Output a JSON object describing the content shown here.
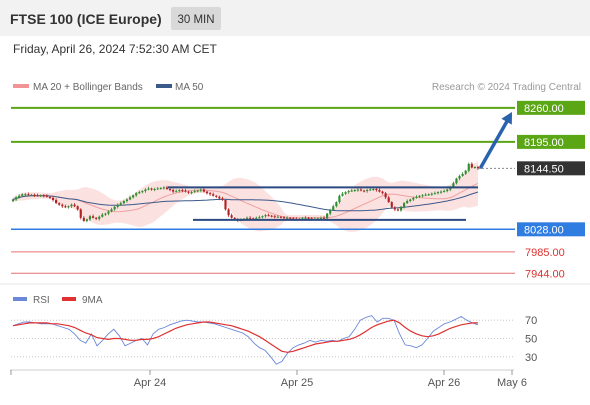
{
  "header": {
    "title": "FTSE 100 (ICE Europe)",
    "timeframe": "30 MIN",
    "datetime": "Friday, April 26, 2024 7:52:30 AM CET"
  },
  "legend": {
    "ma20": "MA 20 + Bollinger Bands",
    "ma50": "MA 50",
    "copyright": "Research © 2024 Trading Central"
  },
  "rsi_legend": {
    "rsi": "RSI",
    "ma9": "9MA"
  },
  "colors": {
    "resistance": "#5aa614",
    "support": "#2f7de1",
    "weak_level": "#e87070",
    "current": "#333333",
    "bollinger": "#fbdcdc",
    "ma20": "#f0a0a0",
    "ma50": "#3b5a8a",
    "candle_up": "#2e8b2e",
    "candle_down": "#b22222",
    "trend_line": "#2c4a80",
    "arrow": "#2a63ad",
    "rsi": "#6a87d8",
    "rsi_ma": "#e03030"
  },
  "chart_data": [
    {
      "type": "candlestick",
      "title": "FTSE 100 (ICE Europe)",
      "timeframe": "30 MIN",
      "ylim": [
        7935,
        8275
      ],
      "x_ticks": [
        "Apr 24",
        "Apr 25",
        "Apr 26",
        "May 6"
      ],
      "levels": [
        {
          "value": 8260.0,
          "label": "8260.00",
          "kind": "resistance"
        },
        {
          "value": 8195.0,
          "label": "8195.00",
          "kind": "resistance"
        },
        {
          "value": 8144.5,
          "label": "8144.50",
          "kind": "current"
        },
        {
          "value": 8028.0,
          "label": "8028.00",
          "kind": "support"
        },
        {
          "value": 7985.0,
          "label": "7985.00",
          "kind": "weak_support"
        },
        {
          "value": 7944.0,
          "label": "7944.00",
          "kind": "weak_support"
        }
      ],
      "trend_lines": [
        {
          "start": {
            "date": "Apr 23",
            "value": 8108
          },
          "end": {
            "date": "Apr 26",
            "value": 8108
          }
        },
        {
          "start": {
            "date": "Apr 24",
            "value": 8046
          },
          "end": {
            "date": "Apr 26",
            "value": 8046
          }
        }
      ],
      "forecast_arrow": {
        "from": 8147,
        "to": 8252
      },
      "closes": [
        8085,
        8089,
        8092,
        8095,
        8095,
        8094,
        8094,
        8093,
        8092,
        8093,
        8092,
        8090,
        8088,
        8084,
        8078,
        8075,
        8072,
        8070,
        8072,
        8075,
        8072,
        8066,
        8050,
        8044,
        8047,
        8053,
        8050,
        8048,
        8052,
        8056,
        8058,
        8062,
        8066,
        8071,
        8075,
        8078,
        8082,
        8085,
        8089,
        8093,
        8097,
        8099,
        8101,
        8104,
        8106,
        8104,
        8105,
        8106,
        8107,
        8108,
        8105,
        8103,
        8100,
        8101,
        8103,
        8102,
        8100,
        8098,
        8099,
        8101,
        8102,
        8104,
        8100,
        8097,
        8095,
        8092,
        8090,
        8087,
        8084,
        8066,
        8055,
        8050,
        8047,
        8045,
        8046,
        8048,
        8050,
        8049,
        8048,
        8050,
        8051,
        8053,
        8055,
        8054,
        8053,
        8052,
        8052,
        8051,
        8050,
        8050,
        8049,
        8048,
        8047,
        8048,
        8049,
        8050,
        8049,
        8048,
        8048,
        8049,
        8050,
        8049,
        8058,
        8065,
        8072,
        8080,
        8092,
        8096,
        8099,
        8101,
        8102,
        8103,
        8104,
        8102,
        8101,
        8103,
        8104,
        8105,
        8103,
        8100,
        8097,
        8089,
        8080,
        8070,
        8066,
        8064,
        8071,
        8078,
        8082,
        8085,
        8088,
        8090,
        8092,
        8093,
        8094,
        8095,
        8096,
        8097,
        8099,
        8100,
        8101,
        8104,
        8108,
        8116,
        8125,
        8130,
        8134,
        8140,
        8153,
        8146,
        8147,
        8144.5
      ],
      "series": [
        {
          "name": "MA 20 + Bollinger Bands"
        },
        {
          "name": "MA 50"
        }
      ]
    },
    {
      "type": "line",
      "title": "RSI",
      "ylim": [
        20,
        80
      ],
      "y_ticks": [
        70,
        50,
        30
      ],
      "x_ticks": [
        "Apr 24",
        "Apr 25",
        "Apr 26",
        "May 6"
      ],
      "series": [
        {
          "name": "RSI",
          "values": [
            64,
            66,
            68,
            68,
            67,
            66,
            66,
            66,
            64,
            62,
            60,
            55,
            48,
            45,
            55,
            42,
            48,
            55,
            60,
            53,
            42,
            45,
            48,
            50,
            43,
            55,
            60,
            62,
            65,
            67,
            69,
            70,
            69,
            68,
            68,
            67,
            66,
            64,
            62,
            60,
            58,
            56,
            52,
            45,
            40,
            37,
            30,
            22,
            25,
            34,
            40,
            43,
            45,
            48,
            46,
            48,
            47,
            48,
            47,
            50,
            52,
            60,
            70,
            73,
            75,
            68,
            72,
            72,
            70,
            55,
            43,
            42,
            40,
            43,
            50,
            58,
            62,
            66,
            68,
            71,
            74,
            70,
            67,
            65
          ]
        },
        {
          "name": "9MA",
          "values": [
            64,
            65,
            66,
            67,
            67,
            67,
            67,
            66,
            66,
            65,
            64,
            62,
            59,
            56,
            54,
            51,
            50,
            49,
            50,
            50,
            49,
            48,
            48,
            49,
            49,
            50,
            52,
            55,
            58,
            61,
            63,
            65,
            66,
            67,
            68,
            68,
            67,
            66,
            65,
            64,
            62,
            60,
            58,
            55,
            52,
            48,
            44,
            40,
            36,
            35,
            36,
            38,
            40,
            42,
            44,
            45,
            46,
            47,
            47,
            48,
            49,
            51,
            54,
            58,
            62,
            65,
            67,
            69,
            70,
            67,
            62,
            58,
            55,
            53,
            52,
            53,
            55,
            58,
            61,
            63,
            65,
            66,
            67,
            67
          ]
        }
      ]
    }
  ]
}
